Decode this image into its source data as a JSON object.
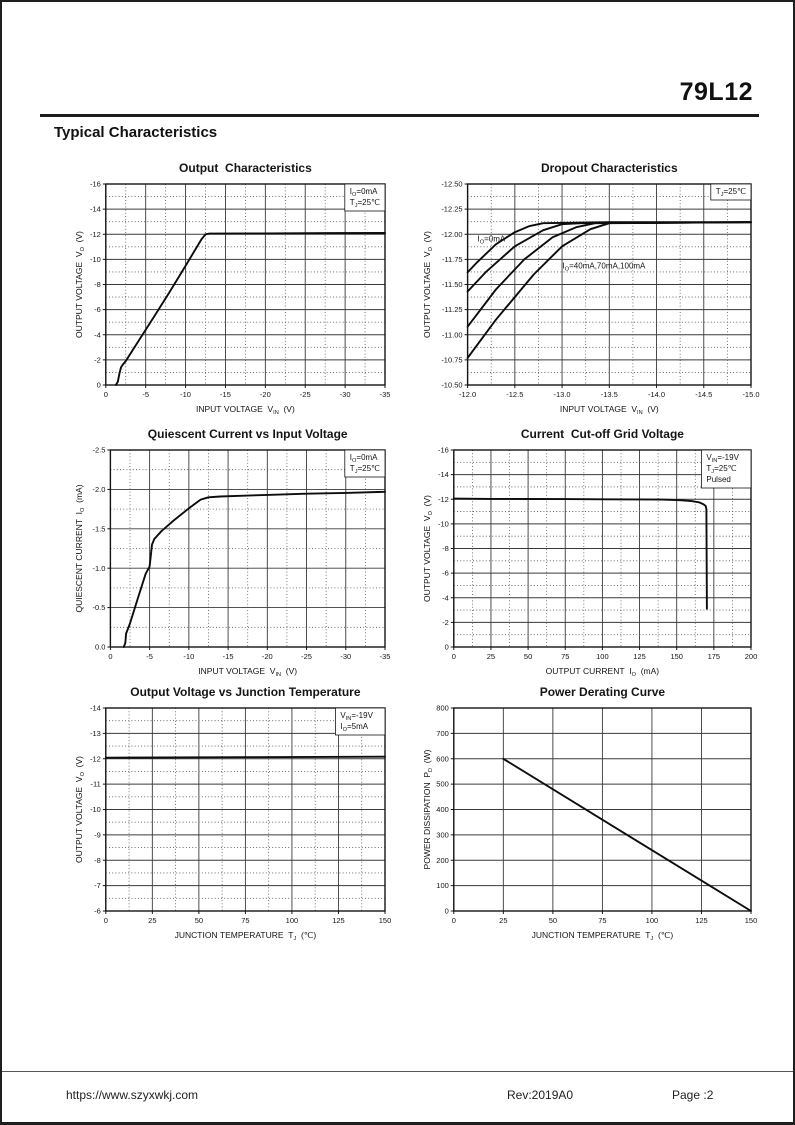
{
  "page": {
    "part_number": "79L12",
    "section_title": "Typical Characteristics",
    "footer": {
      "url": "https://www.szyxwkj.com",
      "revision": "Rev:2019A0",
      "page": "Page :2"
    }
  },
  "chart_data": [
    {
      "name": "output-characteristics",
      "type": "line",
      "title": "Output  Characteristics",
      "xlabel": "INPUT VOLTAGE  V~IN~  (V)",
      "ylabel": "OUTPUT VOLTAGE  V~O~  (V)",
      "xlim": [
        0,
        -35
      ],
      "ylim": [
        0,
        -16
      ],
      "xticks": {
        "values": [
          0,
          -5,
          -10,
          -15,
          -20,
          -25,
          -30,
          -35
        ],
        "labels": [
          "0",
          "-5",
          "-10",
          "-15",
          "-20",
          "-25",
          "-30",
          "-35"
        ]
      },
      "yticks": {
        "values": [
          0,
          -2,
          -4,
          -6,
          -8,
          -10,
          -12,
          -14,
          -16
        ],
        "labels": [
          "0",
          "-2",
          "-4",
          "-6",
          "-8",
          "-10",
          "-12",
          "-14",
          "-16"
        ]
      },
      "minor_grid": true,
      "legend": [
        "I~O~=0mA",
        "T~J~=25℃"
      ],
      "labels": [],
      "series": [
        {
          "name": "IO=0mA",
          "points": [
            [
              -1.25,
              0
            ],
            [
              -1.5,
              -0.25
            ],
            [
              -1.7,
              -0.9
            ],
            [
              -1.9,
              -1.4
            ],
            [
              -2.1,
              -1.6
            ],
            [
              -2.5,
              -1.9
            ],
            [
              -4,
              -3.4
            ],
            [
              -6,
              -5.4
            ],
            [
              -8,
              -7.4
            ],
            [
              -10,
              -9.5
            ],
            [
              -12,
              -11.6
            ],
            [
              -12.5,
              -12.0
            ],
            [
              -13,
              -12.05
            ],
            [
              -20,
              -12.07
            ],
            [
              -28,
              -12.09
            ],
            [
              -35,
              -12.1
            ]
          ]
        }
      ]
    },
    {
      "name": "dropout-characteristics",
      "type": "line",
      "title": "Dropout Characteristics",
      "xlabel": "INPUT VOLTAGE  V~IN~  (V)",
      "ylabel": "OUTPUT VOLTAGE  V~O~  (V)",
      "xlim": [
        -12.0,
        -15.0
      ],
      "ylim": [
        -10.5,
        -12.5
      ],
      "xticks": {
        "values": [
          -12.0,
          -12.5,
          -13.0,
          -13.5,
          -14.0,
          -14.5,
          -15.0
        ],
        "labels": [
          "-12.0",
          "-12.5",
          "-13.0",
          "-13.5",
          "-14.0",
          "-14.5",
          "-15.0"
        ]
      },
      "yticks": {
        "values": [
          -12.5,
          -12.25,
          -12.0,
          -11.75,
          -11.5,
          -11.25,
          -11.0,
          -10.75,
          -10.5
        ],
        "labels": [
          "-12.50",
          "-12.25",
          "-12.00",
          "-11.75",
          "-11.50",
          "-11.25",
          "-11.00",
          "-10.75",
          "-10.50"
        ]
      },
      "minor_grid": true,
      "legend": [
        "T~J~=25℃"
      ],
      "labels": [
        {
          "text": "I~O~=0mA",
          "fx": 0.035,
          "fy": 0.285
        },
        {
          "text": "I~O~=40mA,70mA,100mA",
          "fx": 0.335,
          "fy": 0.42
        }
      ],
      "series": [
        {
          "name": "IO=0mA",
          "points": [
            [
              -12.0,
              -11.62
            ],
            [
              -12.1,
              -11.72
            ],
            [
              -12.3,
              -11.9
            ],
            [
              -12.5,
              -12.02
            ],
            [
              -12.65,
              -12.08
            ],
            [
              -12.8,
              -12.11
            ],
            [
              -13.5,
              -12.12
            ],
            [
              -15,
              -12.12
            ]
          ]
        },
        {
          "name": "IO=40mA",
          "points": [
            [
              -12.0,
              -11.43
            ],
            [
              -12.2,
              -11.63
            ],
            [
              -12.5,
              -11.88
            ],
            [
              -12.8,
              -12.04
            ],
            [
              -13.0,
              -12.1
            ],
            [
              -13.2,
              -12.11
            ],
            [
              -15,
              -12.12
            ]
          ]
        },
        {
          "name": "IO=70mA",
          "points": [
            [
              -12.0,
              -11.08
            ],
            [
              -12.3,
              -11.45
            ],
            [
              -12.6,
              -11.75
            ],
            [
              -12.9,
              -11.97
            ],
            [
              -13.15,
              -12.07
            ],
            [
              -13.35,
              -12.11
            ],
            [
              -15,
              -12.12
            ]
          ]
        },
        {
          "name": "IO=100mA",
          "points": [
            [
              -12.0,
              -10.77
            ],
            [
              -12.3,
              -11.15
            ],
            [
              -12.7,
              -11.6
            ],
            [
              -13.0,
              -11.88
            ],
            [
              -13.3,
              -12.05
            ],
            [
              -13.5,
              -12.11
            ],
            [
              -15,
              -12.12
            ]
          ]
        }
      ]
    },
    {
      "name": "quiescent-current-vs-input-voltage",
      "type": "line",
      "title": "Quiescent Current vs Input Voltage",
      "xlabel": "INPUT VOLTAGE  V~IN~  (V)",
      "ylabel": "QUIESCENT CURRENT  I~O~  (mA)",
      "xlim": [
        0,
        -35
      ],
      "ylim": [
        0.0,
        -2.5
      ],
      "xticks": {
        "values": [
          0,
          -5,
          -10,
          -15,
          -20,
          -25,
          -30,
          -35
        ],
        "labels": [
          "0",
          "-5",
          "-10",
          "-15",
          "-20",
          "-25",
          "-30",
          "-35"
        ]
      },
      "yticks": {
        "values": [
          0.0,
          -0.5,
          -1.0,
          -1.5,
          -2.0,
          -2.5
        ],
        "labels": [
          "0.0",
          "-0.5",
          "-1.0",
          "-1.5",
          "-2.0",
          "-2.5"
        ]
      },
      "minor_grid": true,
      "legend": [
        "I~O~=0mA",
        "T~J~=25℃"
      ],
      "labels": [],
      "series": [
        {
          "name": "IQ",
          "points": [
            [
              -1.7,
              0
            ],
            [
              -1.9,
              -0.05
            ],
            [
              -2.0,
              -0.17
            ],
            [
              -2.5,
              -0.3
            ],
            [
              -3.5,
              -0.62
            ],
            [
              -4.5,
              -0.93
            ],
            [
              -5.0,
              -1.02
            ],
            [
              -5.3,
              -1.3
            ],
            [
              -5.6,
              -1.37
            ],
            [
              -6.5,
              -1.47
            ],
            [
              -8,
              -1.6
            ],
            [
              -10,
              -1.76
            ],
            [
              -11.5,
              -1.87
            ],
            [
              -12.5,
              -1.9
            ],
            [
              -14,
              -1.91
            ],
            [
              -17,
              -1.92
            ],
            [
              -20,
              -1.93
            ],
            [
              -25,
              -1.945
            ],
            [
              -30,
              -1.955
            ],
            [
              -35,
              -1.97
            ]
          ]
        }
      ]
    },
    {
      "name": "current-cut-off-grid-voltage",
      "type": "line",
      "title": "Current  Cut-off Grid Voltage",
      "xlabel": "OUTPUT CURRENT  I~O~  (mA)",
      "ylabel": "OUTPUT VOLTAGE  V~O~  (V)",
      "xlim": [
        0,
        200
      ],
      "ylim": [
        0,
        -16
      ],
      "xticks": {
        "values": [
          0,
          25,
          50,
          75,
          100,
          125,
          150,
          175,
          200
        ],
        "labels": [
          "0",
          "25",
          "50",
          "75",
          "100",
          "125",
          "150",
          "175",
          "200"
        ]
      },
      "yticks": {
        "values": [
          0,
          -2,
          -4,
          -6,
          -8,
          -10,
          -12,
          -14,
          -16
        ],
        "labels": [
          "0",
          "-2",
          "-4",
          "-6",
          "-8",
          "-10",
          "-12",
          "-14",
          "-16"
        ]
      },
      "minor_grid": true,
      "legend": [
        "V~IN~=-19V",
        "T~J~=25℃",
        "Pulsed"
      ],
      "labels": [],
      "series": [
        {
          "name": "cutoff",
          "points": [
            [
              0,
              -12.05
            ],
            [
              25,
              -12.03
            ],
            [
              50,
              -12.02
            ],
            [
              75,
              -12.01
            ],
            [
              100,
              -12.0
            ],
            [
              125,
              -11.99
            ],
            [
              140,
              -11.97
            ],
            [
              152,
              -11.92
            ],
            [
              160,
              -11.85
            ],
            [
              165,
              -11.75
            ],
            [
              168,
              -11.6
            ],
            [
              169.5,
              -11.45
            ],
            [
              170,
              -11.2
            ],
            [
              170.3,
              -3.1
            ]
          ]
        }
      ]
    },
    {
      "name": "output-voltage-vs-junction-temperature",
      "type": "line",
      "title": "Output Voltage vs Junction Temperature",
      "xlabel": "JUNCTION TEMPERATURE  T~J~  (℃)",
      "ylabel": "OUTPUT VOLTAGE  V~O~  (V)",
      "xlim": [
        0,
        150
      ],
      "ylim": [
        -6,
        -14
      ],
      "xticks": {
        "values": [
          0,
          25,
          50,
          75,
          100,
          125,
          150
        ],
        "labels": [
          "0",
          "25",
          "50",
          "75",
          "100",
          "125",
          "150"
        ]
      },
      "yticks": {
        "values": [
          -6,
          -7,
          -8,
          -9,
          -10,
          -11,
          -12,
          -13,
          -14
        ],
        "labels": [
          "-6",
          "-7",
          "-8",
          "-9",
          "-10",
          "-11",
          "-12",
          "-13",
          "-14"
        ]
      },
      "minor_grid": true,
      "legend": [
        "V~IN~=-19V",
        "I~O~=5mA"
      ],
      "labels": [],
      "series": [
        {
          "name": "VO",
          "points": [
            [
              0,
              -12.04
            ],
            [
              75,
              -12.06
            ],
            [
              150,
              -12.08
            ]
          ]
        }
      ]
    },
    {
      "name": "power-derating-curve",
      "type": "line",
      "title": "Power Derating Curve",
      "xlabel": "JUNCTION TEMPERATURE  T~J~  (℃)",
      "ylabel": "POWER DISSIPATION  P~D~  (W)",
      "xlim": [
        0,
        150
      ],
      "ylim": [
        0,
        800
      ],
      "xticks": {
        "values": [
          0,
          25,
          50,
          75,
          100,
          125,
          150
        ],
        "labels": [
          "0",
          "25",
          "50",
          "75",
          "100",
          "125",
          "150"
        ]
      },
      "yticks": {
        "values": [
          0,
          100,
          200,
          300,
          400,
          500,
          600,
          700,
          800
        ],
        "labels": [
          "0",
          "100",
          "200",
          "300",
          "400",
          "500",
          "600",
          "700",
          "800"
        ]
      },
      "minor_grid": false,
      "legend": [],
      "labels": [],
      "series": [
        {
          "name": "PD",
          "points": [
            [
              25,
              600
            ],
            [
              150,
              0
            ]
          ]
        }
      ]
    }
  ],
  "style": {
    "ink_color": "#151515",
    "grid_major_color": "#3a3a3a",
    "grid_minor_color": "#555555",
    "curve_color": "#0d0d0d"
  }
}
